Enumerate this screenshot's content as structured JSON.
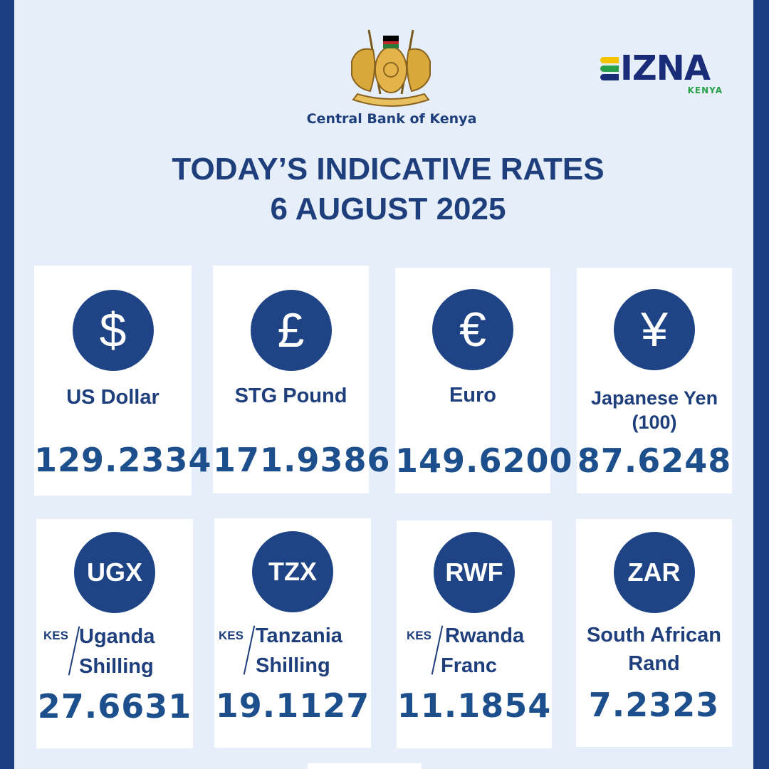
{
  "header": {
    "bank_name": "Central Bank of Kenya",
    "brand": {
      "word": "IZNA",
      "sub": "KENYA"
    },
    "title_line1": "TODAY’S INDICATIVE RATES",
    "title_line2": "6 AUGUST 2025"
  },
  "colors": {
    "navy": "#1e4486",
    "background": "#e6eff9",
    "frame": "#1b3f82",
    "brand_green": "#2aa14a"
  },
  "unit_label": "KES",
  "rates": [
    {
      "icon": "dollar-icon",
      "symbol": "$",
      "label": "US Dollar",
      "value": "129.2334"
    },
    {
      "icon": "pound-icon",
      "symbol": "£",
      "label": "STG Pound",
      "value": "171.9386"
    },
    {
      "icon": "euro-icon",
      "symbol": "€",
      "label": "Euro",
      "value": "149.6200"
    },
    {
      "icon": "yen-icon",
      "symbol": "¥",
      "label": "Japanese Yen (100)",
      "label1": "Japanese Yen",
      "label2": "(100)",
      "value": "87.6248"
    },
    {
      "icon": "ugx-badge",
      "symbol": "UGX",
      "label1": "Uganda",
      "label2": "Shilling",
      "value": "27.6631"
    },
    {
      "icon": "tzx-badge",
      "symbol": "TZX",
      "label1": "Tanzania",
      "label2": "Shilling",
      "value": "19.1127"
    },
    {
      "icon": "rwf-badge",
      "symbol": "RWF",
      "label1": "Rwanda",
      "label2": "Franc",
      "value": "11.1854"
    },
    {
      "icon": "zar-badge",
      "symbol": "ZAR",
      "label1": "South African",
      "label2": "Rand",
      "value": "7.2323"
    }
  ]
}
